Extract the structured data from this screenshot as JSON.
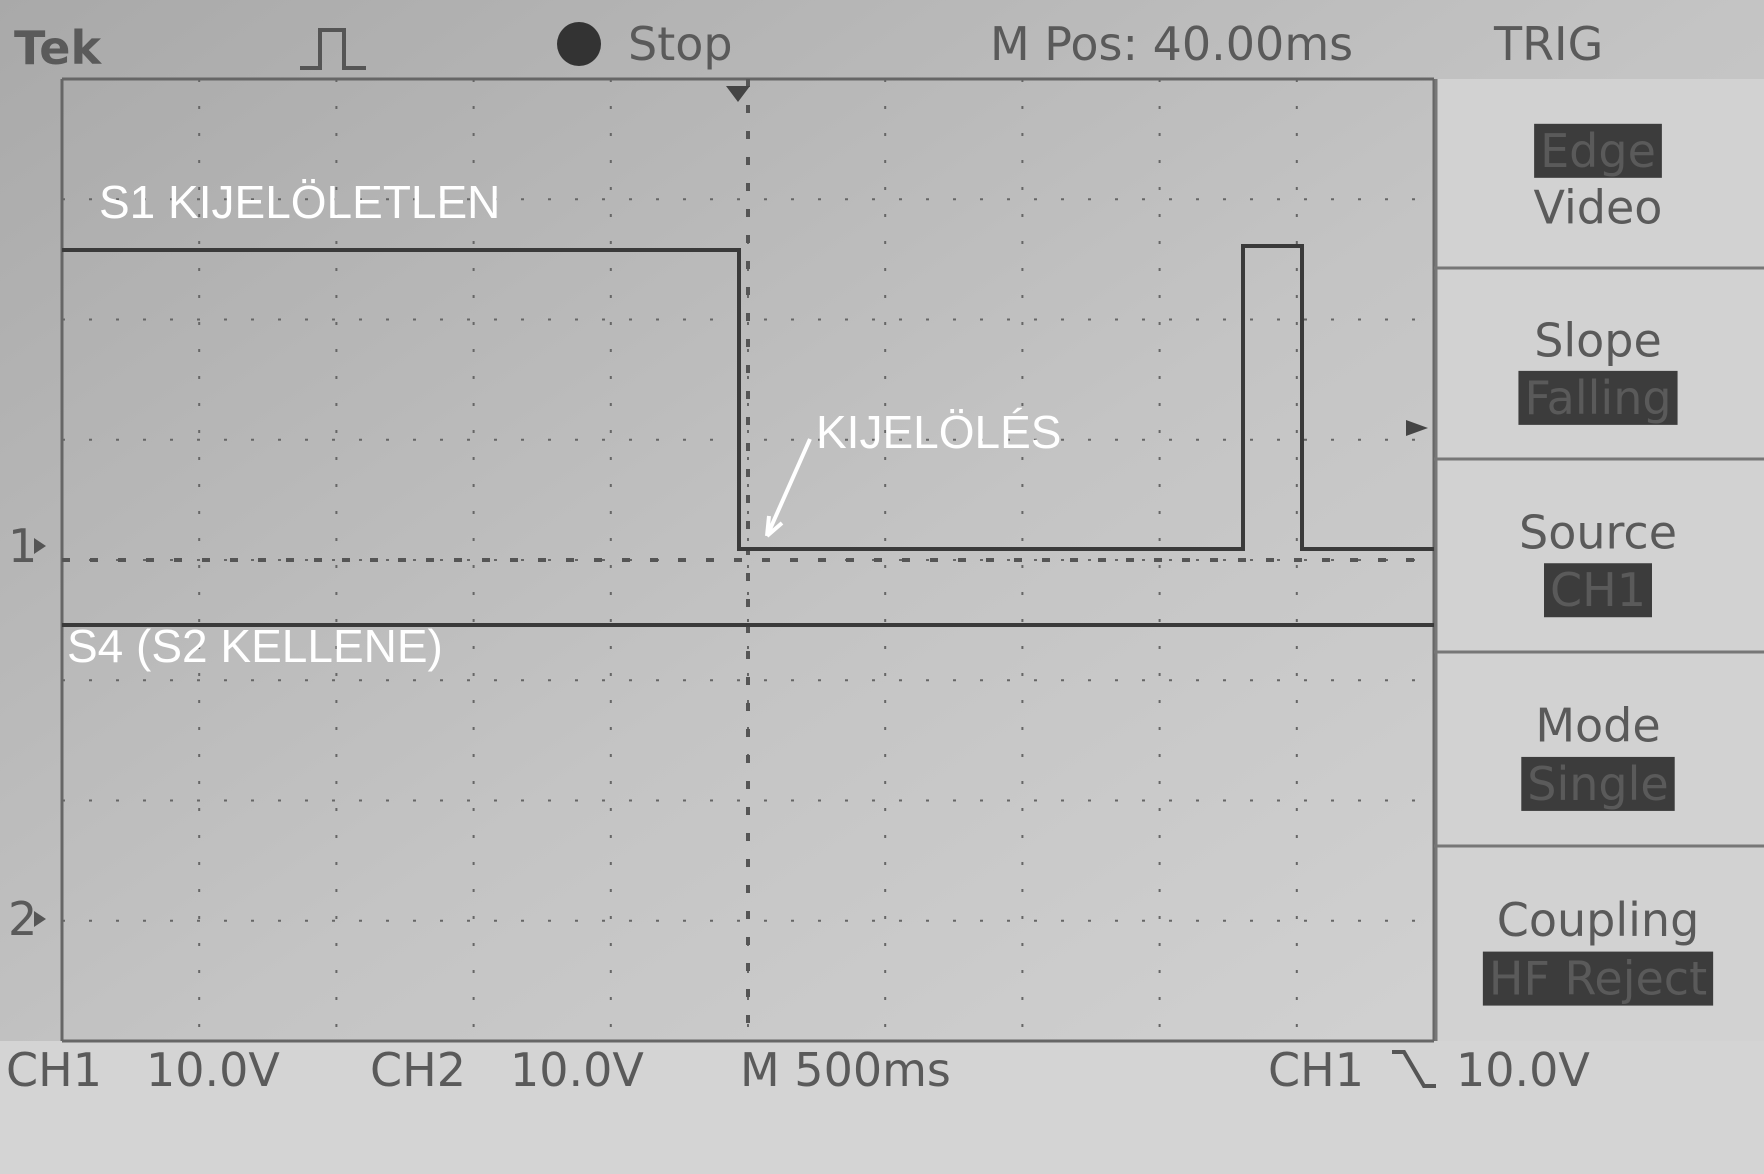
{
  "header": {
    "brand": "Tek",
    "state": "Stop",
    "position": "M Pos: 40.00ms",
    "menu_title": "TRIG"
  },
  "menu": [
    {
      "lines": [
        "Edge",
        "Video"
      ],
      "highlight": 0
    },
    {
      "lines": [
        "Slope",
        "Falling"
      ],
      "highlight": 1
    },
    {
      "lines": [
        "Source",
        "CH1"
      ],
      "highlight": 1
    },
    {
      "lines": [
        "Mode",
        "Single"
      ],
      "highlight": 1
    },
    {
      "lines": [
        "Coupling",
        "HF Reject"
      ],
      "highlight": 1
    }
  ],
  "footer": {
    "ch1": "CH1",
    "ch1_scale": "10.0V",
    "ch2": "CH2",
    "ch2_scale": "10.0V",
    "time": "M 500ms",
    "trigger_source": "CH1",
    "trigger_level": "10.0V"
  },
  "annotations": [
    "S1 KIJELÖLETLEN",
    "KIJELÖLÉS",
    "S4 (S2 KELLENE)"
  ],
  "channel_markers": [
    "1",
    "2"
  ]
}
